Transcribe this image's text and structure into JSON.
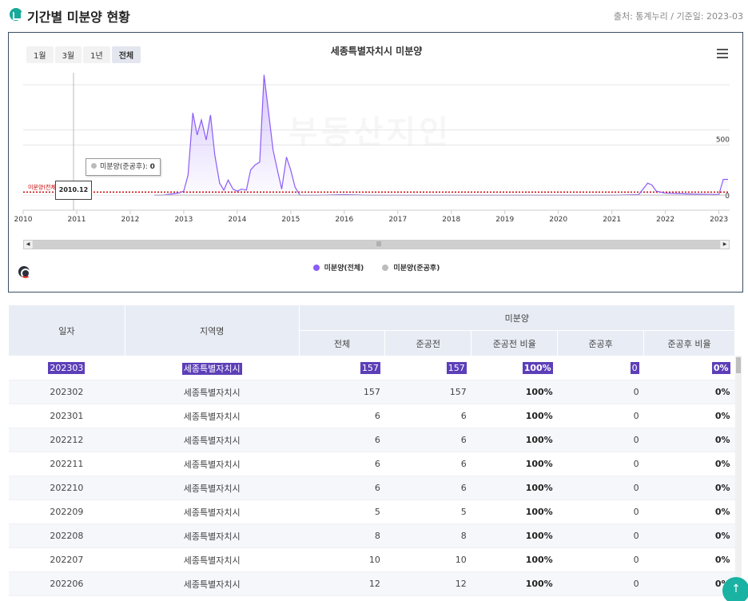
{
  "header": {
    "title": "기간별 미분양 현황",
    "source": "출처: 통계누리 / 기준일: 2023-03"
  },
  "range_buttons": [
    "1월",
    "3월",
    "1년",
    "전체"
  ],
  "active_range": "전체",
  "watermark": "부동산지인",
  "tooltip": {
    "label": "미분양(준공후):",
    "value": "0"
  },
  "date_tip": "2010.12",
  "colors": {
    "series_total": "#8b5cf6",
    "series_post": "#bdbdbd",
    "reference": "#cc0000",
    "accent": "#5c3fb8"
  },
  "chart_data": {
    "type": "area",
    "title": "세종특별자치시 미분양",
    "x_ticks": [
      "2010",
      "2011",
      "2012",
      "2013",
      "2014",
      "2015",
      "2016",
      "2017",
      "2018",
      "2019",
      "2020",
      "2021",
      "2022",
      "2023"
    ],
    "y_ticks": [
      0,
      500
    ],
    "ylim": [
      -150,
      1300
    ],
    "reference_line": {
      "label": "미분양(전체): 2018.13",
      "value": 30
    },
    "legend_position": "bottom",
    "series": [
      {
        "name": "미분양(전체)",
        "points": [
          [
            2012.45,
            0
          ],
          [
            2012.6,
            0
          ],
          [
            2012.75,
            10
          ],
          [
            2012.9,
            20
          ],
          [
            2013.0,
            40
          ],
          [
            2013.08,
            200
          ],
          [
            2013.17,
            820
          ],
          [
            2013.25,
            600
          ],
          [
            2013.33,
            750
          ],
          [
            2013.42,
            550
          ],
          [
            2013.5,
            800
          ],
          [
            2013.58,
            400
          ],
          [
            2013.67,
            120
          ],
          [
            2013.75,
            50
          ],
          [
            2013.83,
            150
          ],
          [
            2013.92,
            60
          ],
          [
            2014.0,
            40
          ],
          [
            2014.08,
            60
          ],
          [
            2014.17,
            50
          ],
          [
            2014.25,
            250
          ],
          [
            2014.33,
            300
          ],
          [
            2014.42,
            330
          ],
          [
            2014.5,
            1200
          ],
          [
            2014.58,
            850
          ],
          [
            2014.67,
            450
          ],
          [
            2014.75,
            250
          ],
          [
            214.83,
            60
          ],
          [
            2014.92,
            380
          ],
          [
            2015.0,
            250
          ],
          [
            2015.08,
            80
          ],
          [
            2015.17,
            0
          ],
          [
            2015.5,
            0
          ],
          [
            2016.0,
            5
          ],
          [
            2016.5,
            0
          ],
          [
            2021.0,
            0
          ],
          [
            2021.5,
            5
          ],
          [
            2021.67,
            120
          ],
          [
            2021.75,
            100
          ],
          [
            2021.83,
            40
          ],
          [
            2022.0,
            20
          ],
          [
            2022.5,
            10
          ],
          [
            2022.83,
            8
          ],
          [
            2023.0,
            6
          ],
          [
            2023.08,
            157
          ],
          [
            2023.17,
            157
          ]
        ]
      },
      {
        "name": "미분양(준공후)",
        "points": [
          [
            2012.45,
            0
          ],
          [
            2023.17,
            0
          ]
        ]
      }
    ]
  },
  "table": {
    "headers": {
      "date": "일자",
      "region": "지역명",
      "group": "미분양",
      "total": "전체",
      "before": "준공전",
      "before_ratio": "준공전 비율",
      "after": "준공후",
      "after_ratio": "준공후 비율"
    },
    "rows": [
      [
        "202303",
        "세종특별자치시",
        "157",
        "157",
        "100%",
        "0",
        "0%"
      ],
      [
        "202302",
        "세종특별자치시",
        "157",
        "157",
        "100%",
        "0",
        "0%"
      ],
      [
        "202301",
        "세종특별자치시",
        "6",
        "6",
        "100%",
        "0",
        "0%"
      ],
      [
        "202212",
        "세종특별자치시",
        "6",
        "6",
        "100%",
        "0",
        "0%"
      ],
      [
        "202211",
        "세종특별자치시",
        "6",
        "6",
        "100%",
        "0",
        "0%"
      ],
      [
        "202210",
        "세종특별자치시",
        "6",
        "6",
        "100%",
        "0",
        "0%"
      ],
      [
        "202209",
        "세종특별자치시",
        "5",
        "5",
        "100%",
        "0",
        "0%"
      ],
      [
        "202208",
        "세종특별자치시",
        "8",
        "8",
        "100%",
        "0",
        "0%"
      ],
      [
        "202207",
        "세종특별자치시",
        "10",
        "10",
        "100%",
        "0",
        "0%"
      ],
      [
        "202206",
        "세종특별자치시",
        "12",
        "12",
        "100%",
        "0",
        "0%"
      ]
    ]
  },
  "top_button": "↑"
}
